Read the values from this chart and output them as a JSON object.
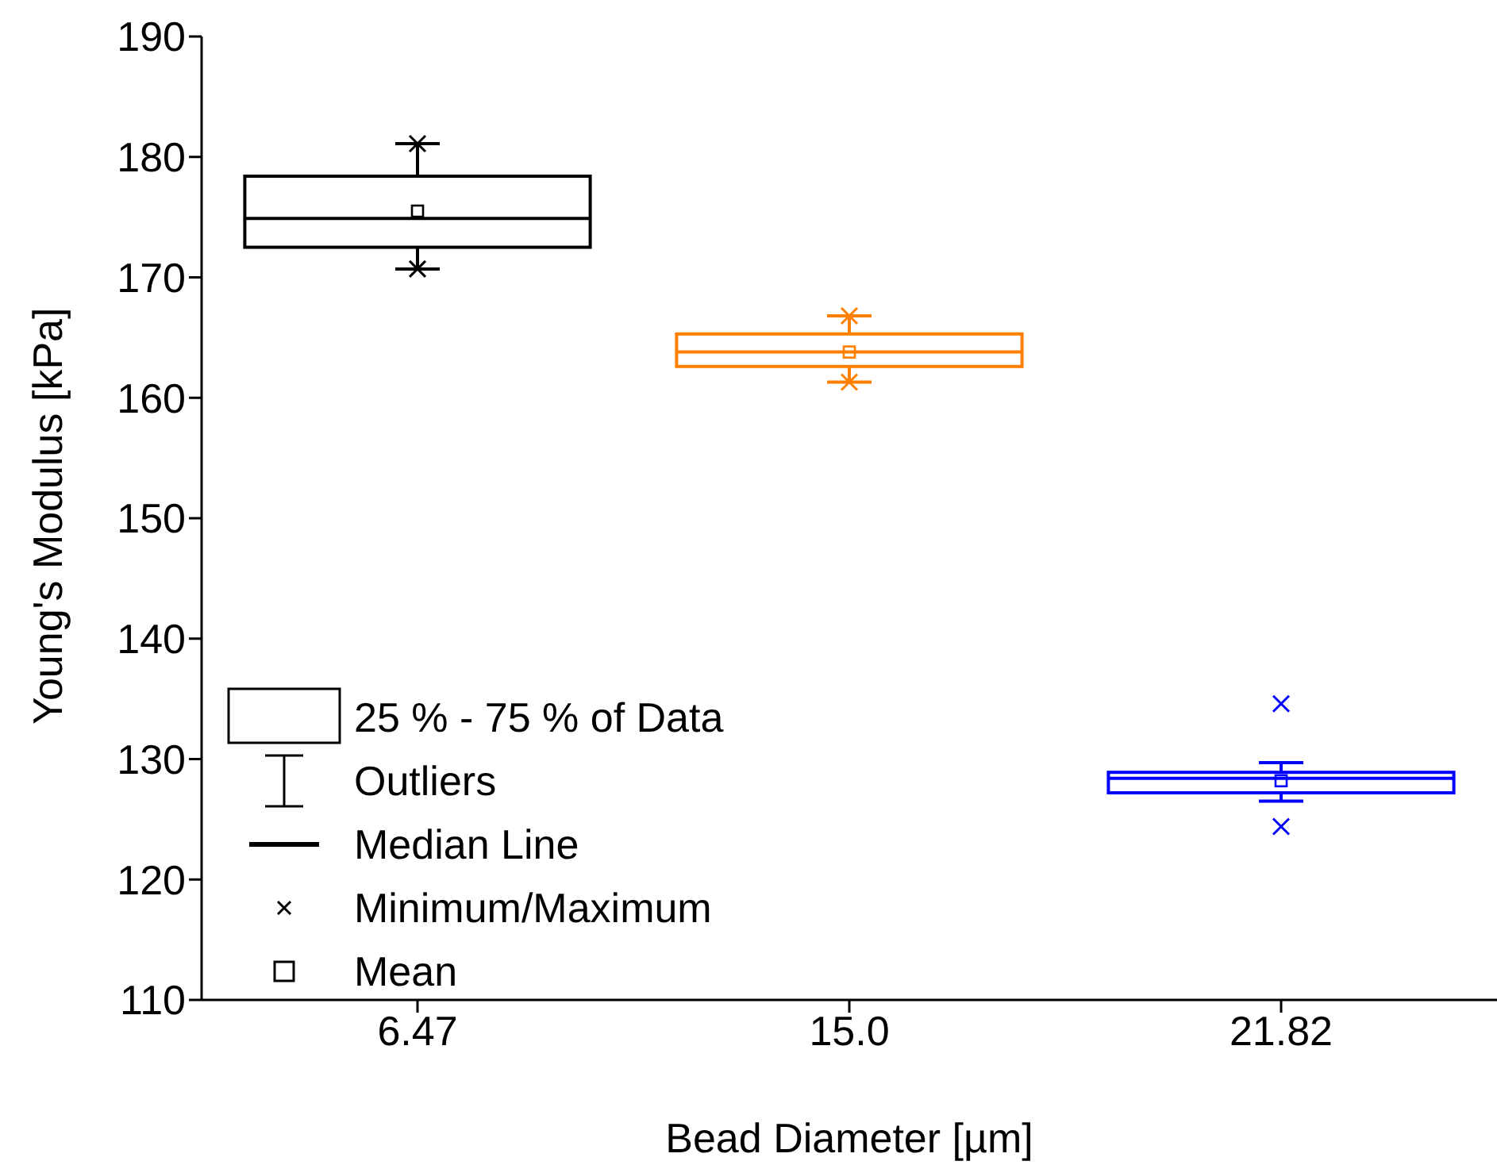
{
  "chart_data": {
    "type": "box",
    "xlabel": "Bead Diameter [µm]",
    "ylabel": "Young's Modulus [kPa]",
    "categories": [
      "6.47",
      "15.0",
      "21.82"
    ],
    "colors": [
      "#000000",
      "#ff7f00",
      "#0000ff"
    ],
    "boxes": [
      {
        "low": 170.7,
        "q1": 172.5,
        "median": 174.9,
        "q3": 178.4,
        "high": 181.1,
        "mean": 175.5,
        "outliers": [
          170.7,
          181.1
        ]
      },
      {
        "low": 161.3,
        "q1": 162.6,
        "median": 163.8,
        "q3": 165.3,
        "high": 166.8,
        "mean": 163.8,
        "outliers": [
          161.3,
          166.8
        ]
      },
      {
        "low": 126.5,
        "q1": 127.2,
        "median": 128.4,
        "q3": 128.9,
        "high": 129.7,
        "mean": 128.2,
        "outliers": [
          124.4,
          134.6
        ]
      }
    ],
    "ylim": [
      110,
      190
    ],
    "yticks": [
      110,
      120,
      130,
      140,
      150,
      160,
      170,
      180,
      190
    ],
    "annotations": [
      "25 % - 75 % of Data",
      "Outliers",
      "Median Line",
      "Minimum/Maximum",
      "Mean"
    ]
  }
}
